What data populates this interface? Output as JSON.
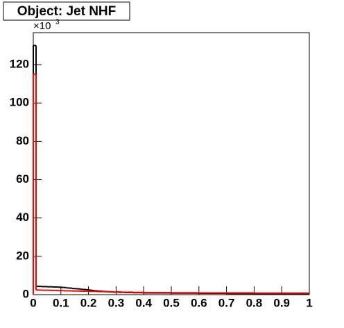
{
  "chart_data": {
    "type": "histogram",
    "title": "Object: Jet NHF",
    "y_multiplier": "×10",
    "y_multiplier_exp": "3",
    "bins": [
      0,
      0.01,
      0.02,
      0.03,
      0.04,
      0.05,
      0.06,
      0.07,
      0.08,
      0.09,
      0.1,
      0.11,
      0.12,
      0.13,
      0.14,
      0.15,
      0.16,
      0.17,
      0.18,
      0.19,
      0.2,
      0.21,
      0.22,
      0.23,
      0.24,
      0.25,
      0.26,
      0.27,
      0.28,
      0.29,
      0.3,
      0.31,
      0.32,
      0.33,
      0.34,
      0.35,
      0.36,
      0.37,
      0.38,
      0.39,
      0.4,
      0.41,
      0.42,
      0.43,
      0.44,
      0.45,
      0.46,
      0.47,
      0.48,
      0.49,
      0.5,
      0.51,
      0.52,
      0.53,
      0.54,
      0.55,
      0.56,
      0.57,
      0.58,
      0.59,
      0.6,
      0.61,
      0.62,
      0.63,
      0.64,
      0.65,
      0.66,
      0.67,
      0.68,
      0.69,
      0.7,
      0.71,
      0.72,
      0.73,
      0.74,
      0.75,
      0.76,
      0.77,
      0.78,
      0.79,
      0.8,
      0.81,
      0.82,
      0.83,
      0.84,
      0.85,
      0.86,
      0.87,
      0.88,
      0.89,
      0.9,
      0.91,
      0.92,
      0.93,
      0.94,
      0.95,
      0.96,
      0.97,
      0.98,
      0.99,
      1
    ],
    "series": [
      {
        "color": "#000000",
        "values": [
          130,
          4.3,
          4.3,
          4.2,
          4.2,
          4.1,
          4.1,
          4.0,
          4.0,
          3.9,
          3.8,
          3.7,
          3.5,
          3.4,
          3.2,
          3.1,
          3.0,
          2.8,
          2.7,
          2.6,
          2.4,
          2.2,
          2.0,
          1.9,
          1.8,
          1.7,
          1.6,
          1.5,
          1.4,
          1.3,
          1.3,
          1.2,
          1.2,
          1.1,
          1.1,
          1.1,
          1.0,
          1.0,
          1.0,
          1.0,
          0.9,
          0.9,
          0.9,
          0.9,
          0.9,
          0.9,
          0.9,
          0.9,
          0.9,
          0.9,
          0.8,
          0.8,
          0.8,
          0.8,
          0.8,
          0.8,
          0.8,
          0.8,
          0.8,
          0.8,
          0.7,
          0.7,
          0.7,
          0.7,
          0.7,
          0.7,
          0.7,
          0.7,
          0.7,
          0.7,
          0.6,
          0.6,
          0.6,
          0.6,
          0.6,
          0.6,
          0.6,
          0.6,
          0.6,
          0.6,
          0.5,
          0.5,
          0.5,
          0.5,
          0.5,
          0.5,
          0.5,
          0.5,
          0.5,
          0.5,
          0.4,
          0.4,
          0.4,
          0.4,
          0.4,
          0.4,
          0.4,
          0.4,
          0.4,
          0.4
        ]
      },
      {
        "color": "#ff0000",
        "values": [
          115,
          2.4,
          2.4,
          2.3,
          2.3,
          2.3,
          2.2,
          2.2,
          2.2,
          2.1,
          2.1,
          2.0,
          2.0,
          2.0,
          1.9,
          1.9,
          1.9,
          1.8,
          1.8,
          1.8,
          1.7,
          1.7,
          1.7,
          1.6,
          1.6,
          1.6,
          1.5,
          1.5,
          1.5,
          1.4,
          1.4,
          1.4,
          1.3,
          1.3,
          1.3,
          1.3,
          1.2,
          1.2,
          1.2,
          1.2,
          1.1,
          1.1,
          1.1,
          1.1,
          1.1,
          1.1,
          1.1,
          1.1,
          1.1,
          1.1,
          1.0,
          1.0,
          1.0,
          1.0,
          1.0,
          1.0,
          1.0,
          1.0,
          1.0,
          1.0,
          0.9,
          0.9,
          0.9,
          0.9,
          0.9,
          0.9,
          0.9,
          0.9,
          0.9,
          0.9,
          0.9,
          0.9,
          0.9,
          0.9,
          0.9,
          0.9,
          0.9,
          0.9,
          0.9,
          0.9,
          0.8,
          0.8,
          0.8,
          0.8,
          0.8,
          0.8,
          0.8,
          0.8,
          0.8,
          0.8,
          0.8,
          0.8,
          0.8,
          0.8,
          0.8,
          0.8,
          0.8,
          0.8,
          0.8,
          0.8
        ]
      }
    ],
    "xlim": [
      0,
      1
    ],
    "xticks": [
      0,
      0.1,
      0.2,
      0.3,
      0.4,
      0.5,
      0.6,
      0.7,
      0.8,
      0.9,
      1
    ],
    "ylim": [
      0,
      136.7
    ],
    "yticks": [
      0,
      20,
      40,
      60,
      80,
      100,
      120
    ]
  }
}
